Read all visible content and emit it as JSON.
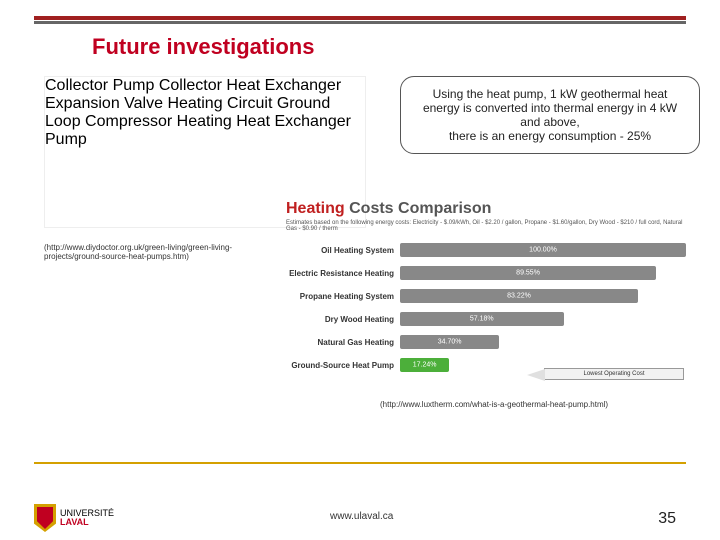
{
  "title": "Future investigations",
  "bubble": {
    "line1": "Using the heat pump, 1 kW geothermal heat energy is converted into thermal energy in 4 kW and above,",
    "line2": "there is an energy consumption - 25%"
  },
  "diagram": {
    "labels": {
      "collector_pump": "Collector\nPump",
      "collector_hx": "Collector\nHeat Exchanger",
      "expansion": "Expansion\nValve",
      "heating_circuit": "Heating\nCircuit",
      "ground_loop": "Ground Loop",
      "compressor": "Compressor",
      "heating_hx": "Heating\nHeat Exchanger",
      "pump": "Pump"
    },
    "colors": {
      "coil": "#3a8fd0",
      "tank1_top": "#6a6fe0",
      "tank1_body": "#7b46c4",
      "tank2_top": "#e03a3a",
      "tank2_body": "#c82a30",
      "compressor": "#f5c542",
      "heating_block": "#f5d079",
      "arrow_blue": "#1e6ec0",
      "arrow_red": "#c02020",
      "ground": "#888"
    }
  },
  "cite1": "(http://www.diydoctor.org.uk/green-living/green-living-projects/ground-source-heat-pumps.htm)",
  "chart": {
    "title_html": {
      "a": "Heating",
      "a_color": "#c02020",
      "b": " Costs Comparison",
      "b_color": "#555"
    },
    "sub": "Estimates based on the following energy costs:\nElectricity - $.09/kWh, Oil - $2.20 / gallon, Propane - $1.60/gallon, Dry Wood - $210 / full cord, Natural Gas - $0.90 / therm",
    "rows": [
      {
        "label": "Oil Heating System",
        "value": 100.0,
        "color": "#888888"
      },
      {
        "label": "Electric Resistance Heating",
        "value": 89.55,
        "color": "#888888"
      },
      {
        "label": "Propane Heating System",
        "value": 83.22,
        "color": "#888888"
      },
      {
        "label": "Dry Wood Heating",
        "value": 57.18,
        "color": "#888888"
      },
      {
        "label": "Natural Gas Heating",
        "value": 34.7,
        "color": "#888888"
      },
      {
        "label": "Ground-Source Heat Pump",
        "value": 17.24,
        "color": "#4caf3a"
      }
    ],
    "lowest_label": "Lowest Operating Cost"
  },
  "cite2": "(http://www.luxtherm.com/what-is-a-geothermal-heat-pump.html)",
  "footer": {
    "logo1": "UNIVERSITÉ",
    "logo2": "LAVAL",
    "url": "www.ulaval.ca",
    "page": "35"
  }
}
